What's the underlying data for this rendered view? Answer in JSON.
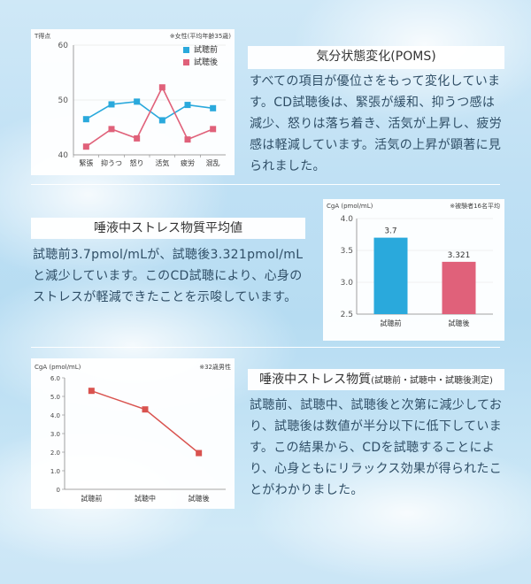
{
  "colors": {
    "before": "#2aa9dc",
    "after": "#e0617a",
    "line3": "#d9534f"
  },
  "poms": {
    "heading": "気分状態変化(POMS)",
    "body": "すべての項目が優位さをもって変化しています。CD試聴後は、緊張が緩和、抑うつ感は減少、怒りは落ち着き、活気が上昇し、疲労感は軽減しています。活気の上昇が顕著に見られました。"
  },
  "saliva_avg": {
    "heading": "唾液中ストレス物質平均値",
    "body": "試聴前3.7pmol/mLが、試聴後3.321pmol/mLと減少しています。このCD試聴により、心身のストレスが軽減できたことを示唆しています。"
  },
  "saliva_time": {
    "heading_main": "唾液中ストレス物質",
    "heading_sub": "(試聴前・試聴中・試聴後測定)",
    "body": "試聴前、試聴中、試聴後と次第に減少しており、試聴後は数値が半分以下に低下しています。この結果から、CDを試聴することにより、心身ともにリラックス効果が得られたことがわかりました。"
  },
  "chart_data": [
    {
      "type": "line",
      "ylabel": "T得点",
      "note": "※女性(平均年齢35歳)",
      "categories": [
        "緊張",
        "抑うつ",
        "怒り",
        "活気",
        "疲労",
        "混乱"
      ],
      "ylim": [
        40,
        60
      ],
      "yticks": [
        40,
        50,
        60
      ],
      "legend_position": "top-right",
      "series": [
        {
          "name": "試聴前",
          "color": "#2aa9dc",
          "values": [
            46.5,
            49.2,
            49.7,
            46.3,
            49.1,
            48.5
          ]
        },
        {
          "name": "試聴後",
          "color": "#e0617a",
          "values": [
            41.5,
            44.7,
            43.0,
            52.3,
            42.8,
            44.7
          ]
        }
      ]
    },
    {
      "type": "bar",
      "ylabel": "CgA (pmol/mL)",
      "note": "※被験者16名平均",
      "categories": [
        "試聴前",
        "試聴後"
      ],
      "values": [
        3.7,
        3.321
      ],
      "value_labels": [
        "3.7",
        "3.321"
      ],
      "colors": [
        "#2aa9dc",
        "#e0617a"
      ],
      "ylim": [
        2.5,
        4.0
      ],
      "yticks": [
        "2.5",
        "3.0",
        "3.5",
        "4.0"
      ]
    },
    {
      "type": "line",
      "ylabel": "CgA (pmol/mL)",
      "note": "※32歳男性",
      "categories": [
        "試聴前",
        "試聴中",
        "試聴後"
      ],
      "ylim": [
        0,
        6
      ],
      "yticks": [
        "0",
        "1.0",
        "2.0",
        "3.0",
        "4.0",
        "5.0",
        "6.0"
      ],
      "series": [
        {
          "color": "#d9534f",
          "values": [
            5.3,
            4.3,
            1.95
          ]
        }
      ]
    }
  ]
}
